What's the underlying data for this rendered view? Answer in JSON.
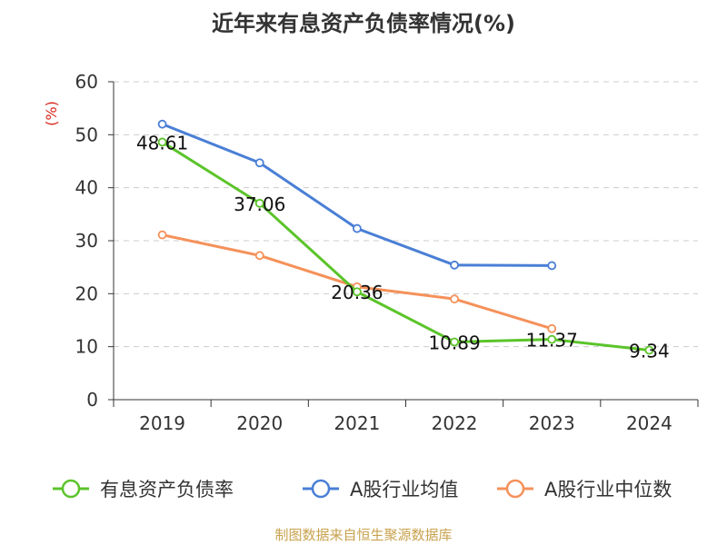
{
  "header": {
    "title": "近年来有息资产负债率情况(%)"
  },
  "footer": {
    "source": "制图数据来自恒生聚源数据库"
  },
  "chart_data": {
    "type": "line",
    "title": "近年来有息资产负债率情况(%)",
    "ylabel": "(%)",
    "xlabel": "",
    "categories": [
      "2019",
      "2020",
      "2021",
      "2022",
      "2023",
      "2024"
    ],
    "ylim": [
      0,
      60
    ],
    "yticks": [
      "0",
      "10",
      "20",
      "30",
      "40",
      "50",
      "60"
    ],
    "grid": true,
    "legend_position": "bottom",
    "series": [
      {
        "name": "有息资产负债率",
        "color": "#5bc42a",
        "values": [
          48.61,
          37.06,
          20.36,
          10.89,
          11.37,
          9.34
        ],
        "labels": [
          "48.61",
          "37.06",
          "20.36",
          "10.89",
          "11.37",
          "9.34"
        ]
      },
      {
        "name": "A股行业均值",
        "color": "#4a7fd6",
        "values": [
          52.0,
          44.7,
          32.3,
          25.4,
          25.3,
          null
        ],
        "labels": []
      },
      {
        "name": "A股行业中位数",
        "color": "#f5915a",
        "values": [
          31.1,
          27.2,
          21.3,
          19.0,
          13.4,
          null
        ],
        "labels": []
      }
    ]
  }
}
